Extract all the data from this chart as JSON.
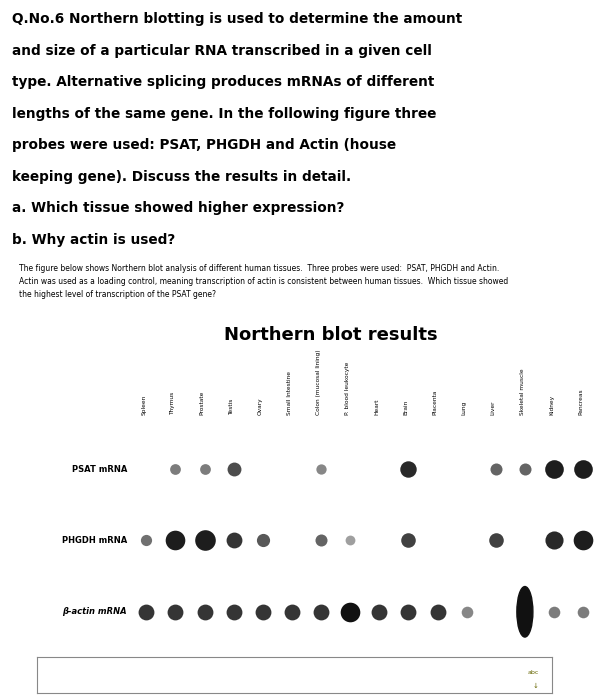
{
  "background_color": "#ffffff",
  "main_text_lines": [
    "Q.No.6 Northern blotting is used to determine the amount",
    "and size of a particular RNA transcribed in a given cell",
    "type. Alternative splicing produces mRNAs of different",
    "lengths of the same gene. In the following figure three",
    "probes were used: PSAT, PHGDH and Actin (house",
    "keeping gene). Discuss the results in detail.",
    "a. Which tissue showed higher expression?",
    "b. Why actin is used?"
  ],
  "small_text": "The figure below shows Northern blot analysis of different human tissues.  Three probes were used:  PSAT, PHGDH and Actin.\nActin was used as a loading control, meaning transcription of actin is consistent between human tissues.  Which tissue showed\nthe highest level of transcription of the PSAT gene?",
  "blot_title": "Northern blot results",
  "row_labels": [
    "PSAT mRNA",
    "PHGDH mRNA",
    "β-actin mRNA"
  ],
  "row_label_styles": [
    "normal",
    "normal",
    "italic"
  ],
  "col_labels": [
    "Spleen",
    "Thymus",
    "Prostate",
    "Testis",
    "Ovary",
    "Small Intestine",
    "Colon (mucosal lining)",
    "P. blood leukocyte",
    "Heart",
    "Brain",
    "Placenta",
    "Lung",
    "Liver",
    "Skeletal muscle",
    "Kidney",
    "Pancreas"
  ],
  "dot_color": "#111111",
  "panel_bg": "#bebebe",
  "dots": {
    "PSAT": [
      {
        "col": 1,
        "size": 60,
        "alpha": 0.55
      },
      {
        "col": 2,
        "size": 60,
        "alpha": 0.55
      },
      {
        "col": 3,
        "size": 100,
        "alpha": 0.75
      },
      {
        "col": 6,
        "size": 55,
        "alpha": 0.5
      },
      {
        "col": 9,
        "size": 140,
        "alpha": 0.9
      },
      {
        "col": 12,
        "size": 75,
        "alpha": 0.65
      },
      {
        "col": 13,
        "size": 75,
        "alpha": 0.65
      },
      {
        "col": 14,
        "size": 180,
        "alpha": 0.95
      },
      {
        "col": 15,
        "size": 180,
        "alpha": 0.95
      }
    ],
    "PHGDH": [
      {
        "col": 0,
        "size": 65,
        "alpha": 0.6
      },
      {
        "col": 1,
        "size": 200,
        "alpha": 0.95
      },
      {
        "col": 2,
        "size": 220,
        "alpha": 0.95
      },
      {
        "col": 3,
        "size": 130,
        "alpha": 0.85
      },
      {
        "col": 4,
        "size": 90,
        "alpha": 0.7
      },
      {
        "col": 6,
        "size": 75,
        "alpha": 0.65
      },
      {
        "col": 7,
        "size": 50,
        "alpha": 0.4
      },
      {
        "col": 9,
        "size": 110,
        "alpha": 0.8
      },
      {
        "col": 12,
        "size": 110,
        "alpha": 0.8
      },
      {
        "col": 14,
        "size": 170,
        "alpha": 0.9
      },
      {
        "col": 15,
        "size": 200,
        "alpha": 0.95
      }
    ],
    "Bactin": [
      {
        "col": 0,
        "size": 130,
        "alpha": 0.85
      },
      {
        "col": 1,
        "size": 130,
        "alpha": 0.85
      },
      {
        "col": 2,
        "size": 130,
        "alpha": 0.85
      },
      {
        "col": 3,
        "size": 130,
        "alpha": 0.85
      },
      {
        "col": 4,
        "size": 130,
        "alpha": 0.85
      },
      {
        "col": 5,
        "size": 130,
        "alpha": 0.85
      },
      {
        "col": 6,
        "size": 130,
        "alpha": 0.85
      },
      {
        "col": 7,
        "size": 200,
        "alpha": 1.0
      },
      {
        "col": 8,
        "size": 130,
        "alpha": 0.85
      },
      {
        "col": 9,
        "size": 130,
        "alpha": 0.85
      },
      {
        "col": 10,
        "size": 130,
        "alpha": 0.85
      },
      {
        "col": 11,
        "size": 70,
        "alpha": 0.5
      },
      {
        "col": 13,
        "size": -1,
        "alpha": 1.0
      },
      {
        "col": 14,
        "size": 70,
        "alpha": 0.55
      },
      {
        "col": 15,
        "size": 70,
        "alpha": 0.55
      }
    ]
  }
}
